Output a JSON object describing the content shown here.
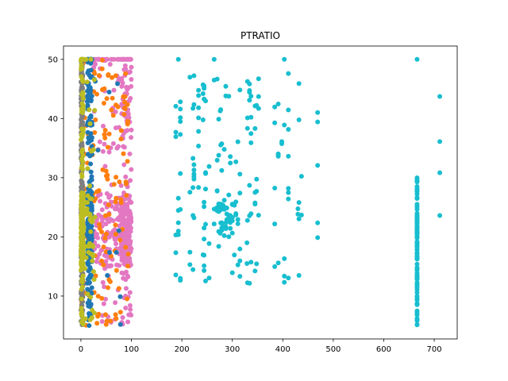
{
  "chart_data": {
    "type": "scatter",
    "title": "PTRATIO",
    "xlabel": "",
    "ylabel": "",
    "xlim": [
      -34.5,
      745.5
    ],
    "ylim": [
      2.75,
      52.25
    ],
    "xticks": [
      0,
      100,
      200,
      300,
      400,
      500,
      600,
      700
    ],
    "yticks": [
      10,
      20,
      30,
      40,
      50
    ],
    "grid": false,
    "legend": "none",
    "series": [
      {
        "color": "#e377c2",
        "x_range": [
          0,
          100
        ],
        "y_range": [
          5,
          50
        ]
      },
      {
        "color": "#ff7f0e",
        "x_range": [
          0,
          100
        ],
        "y_range": [
          5,
          50
        ]
      },
      {
        "color": "#1f77b4",
        "x_range": [
          12.6,
          22
        ],
        "y_range": [
          5,
          50
        ]
      },
      {
        "color": "#7f7f7f",
        "x_range": [
          0,
          4
        ],
        "y_range": [
          5,
          50
        ]
      },
      {
        "color": "#bcbd22",
        "x_range": [
          0,
          28
        ],
        "y_range": [
          5,
          50
        ]
      },
      {
        "color": "#17becf",
        "x_range": [
          187,
          711
        ],
        "y_range": [
          5,
          50
        ]
      }
    ]
  }
}
